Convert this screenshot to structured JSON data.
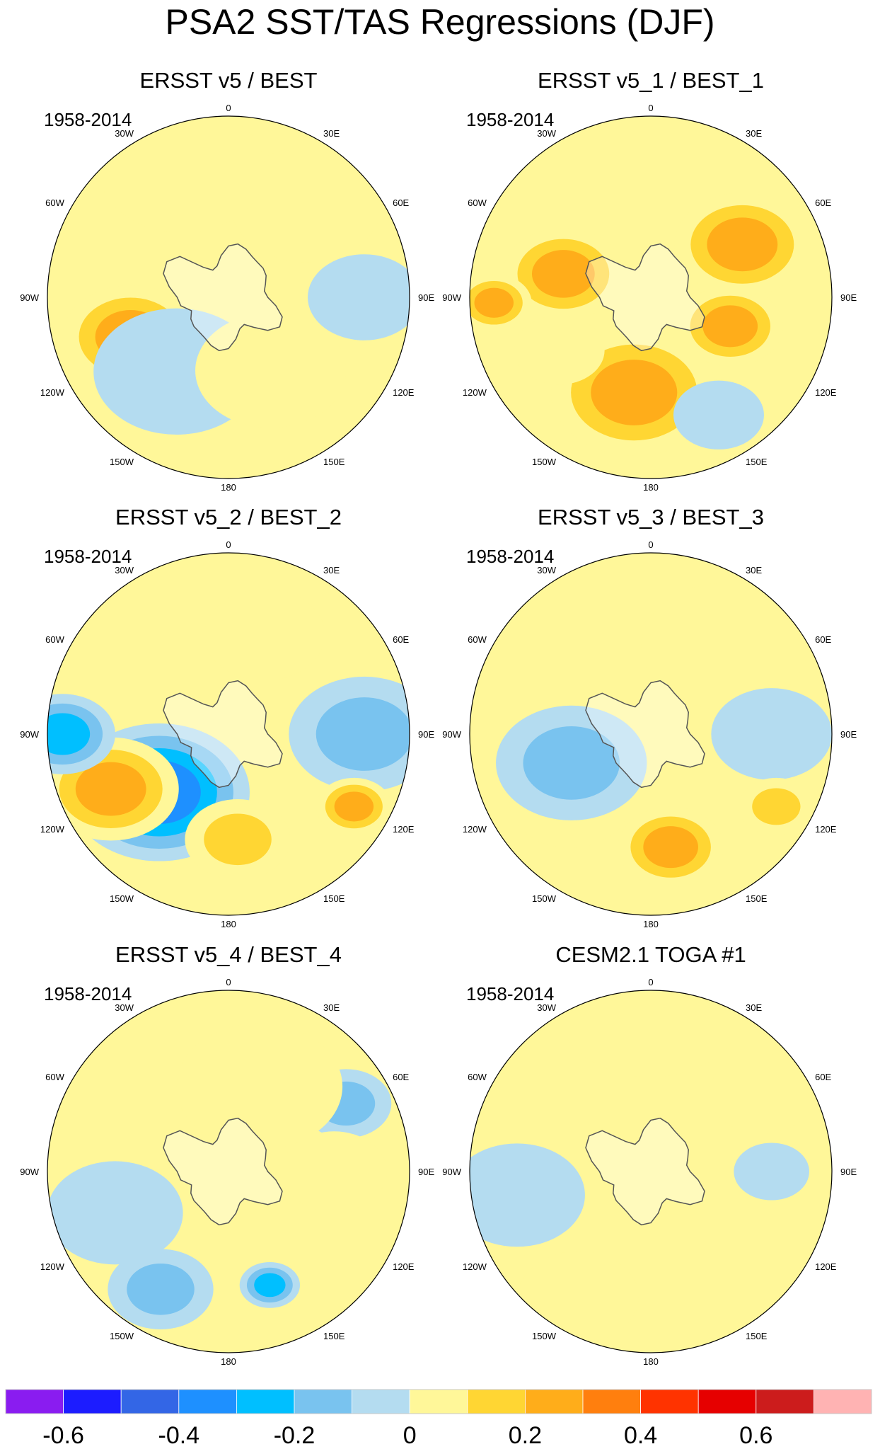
{
  "figure": {
    "title": "PSA2 SST/TAS Regressions (DJF)"
  },
  "chart_data": [
    {
      "type": "heatmap",
      "projection": "south-polar-stereographic",
      "title": "ERSST v5 / BEST",
      "period": "1958-2014",
      "longitude_labels": [
        "0",
        "30E",
        "60E",
        "90E",
        "120E",
        "150E",
        "180",
        "150W",
        "120W",
        "90W",
        "60W",
        "30W"
      ],
      "field_features": [
        {
          "lon": -112,
          "lat": -55,
          "value": 0.25,
          "size": 18
        },
        {
          "lon": -145,
          "lat": -60,
          "value": -0.15,
          "size": 22
        },
        {
          "lon": 40,
          "lat": -50,
          "value": 0.15,
          "size": 20
        },
        {
          "lon": 90,
          "lat": -45,
          "value": -0.1,
          "size": 15
        },
        {
          "lon": -20,
          "lat": -45,
          "value": 0.1,
          "size": 22
        },
        {
          "lon": 150,
          "lat": -62,
          "value": 0.05,
          "size": 20
        }
      ]
    },
    {
      "type": "heatmap",
      "projection": "south-polar-stereographic",
      "title": "ERSST v5_1 / BEST_1",
      "period": "1958-2014",
      "longitude_labels": [
        "0",
        "30E",
        "60E",
        "90E",
        "120E",
        "150E",
        "180",
        "150W",
        "120W",
        "90W",
        "60W",
        "30W"
      ],
      "field_features": [
        {
          "lon": -75,
          "lat": -60,
          "value": 0.3,
          "size": 16
        },
        {
          "lon": 110,
          "lat": -62,
          "value": 0.3,
          "size": 14
        },
        {
          "lon": 60,
          "lat": -55,
          "value": 0.25,
          "size": 18
        },
        {
          "lon": -170,
          "lat": -58,
          "value": 0.25,
          "size": 22
        },
        {
          "lon": -120,
          "lat": -55,
          "value": 0.05,
          "size": 12
        },
        {
          "lon": 150,
          "lat": -45,
          "value": -0.1,
          "size": 12
        },
        {
          "lon": -92,
          "lat": -38,
          "value": 0.35,
          "size": 10
        }
      ]
    },
    {
      "type": "heatmap",
      "projection": "south-polar-stereographic",
      "title": "ERSST v5_2 / BEST_2",
      "period": "1958-2014",
      "longitude_labels": [
        "0",
        "30E",
        "60E",
        "90E",
        "120E",
        "150E",
        "180",
        "150W",
        "120W",
        "90W",
        "60W",
        "30W"
      ],
      "field_features": [
        {
          "lon": -130,
          "lat": -60,
          "value": -0.4,
          "size": 24
        },
        {
          "lon": -115,
          "lat": -47,
          "value": 0.3,
          "size": 18
        },
        {
          "lon": 90,
          "lat": -45,
          "value": -0.2,
          "size": 20
        },
        {
          "lon": 175,
          "lat": -55,
          "value": 0.2,
          "size": 14
        },
        {
          "lon": 20,
          "lat": -55,
          "value": 0.1,
          "size": 16
        },
        {
          "lon": 120,
          "lat": -42,
          "value": 0.25,
          "size": 10
        },
        {
          "lon": -90,
          "lat": -35,
          "value": -0.3,
          "size": 14
        }
      ]
    },
    {
      "type": "heatmap",
      "projection": "south-polar-stereographic",
      "title": "ERSST v5_3 / BEST_3",
      "period": "1958-2014",
      "longitude_labels": [
        "0",
        "30E",
        "60E",
        "90E",
        "120E",
        "150E",
        "180",
        "150W",
        "120W",
        "90W",
        "60W",
        "30W"
      ],
      "field_features": [
        {
          "lon": 170,
          "lat": -52,
          "value": 0.25,
          "size": 14
        },
        {
          "lon": 40,
          "lat": -52,
          "value": 0.15,
          "size": 22
        },
        {
          "lon": -130,
          "lat": -55,
          "value": 0.1,
          "size": 16
        },
        {
          "lon": -110,
          "lat": -62,
          "value": -0.2,
          "size": 20
        },
        {
          "lon": 90,
          "lat": -50,
          "value": -0.15,
          "size": 16
        },
        {
          "lon": 120,
          "lat": -42,
          "value": 0.2,
          "size": 10
        }
      ]
    },
    {
      "type": "heatmap",
      "projection": "south-polar-stereographic",
      "title": "ERSST v5_4 / BEST_4",
      "period": "1958-2014",
      "longitude_labels": [
        "0",
        "30E",
        "60E",
        "90E",
        "120E",
        "150E",
        "180",
        "150W",
        "120W",
        "90W",
        "60W",
        "30W"
      ],
      "field_features": [
        {
          "lon": 60,
          "lat": -45,
          "value": -0.2,
          "size": 12
        },
        {
          "lon": -150,
          "lat": -45,
          "value": -0.2,
          "size": 14
        },
        {
          "lon": 90,
          "lat": -55,
          "value": 0.15,
          "size": 14
        },
        {
          "lon": 20,
          "lat": -60,
          "value": 0.1,
          "size": 22
        },
        {
          "lon": -110,
          "lat": -50,
          "value": -0.15,
          "size": 18
        },
        {
          "lon": 160,
          "lat": -50,
          "value": -0.25,
          "size": 8
        }
      ]
    },
    {
      "type": "heatmap",
      "projection": "south-polar-stereographic",
      "title": "CESM2.1 TOGA #1",
      "period": "1958-2014",
      "longitude_labels": [
        "0",
        "30E",
        "60E",
        "90E",
        "120E",
        "150E",
        "180",
        "150W",
        "120W",
        "90W",
        "60W",
        "30W"
      ],
      "field_features": [
        {
          "lon": 0,
          "lat": -35,
          "value": 0.15,
          "size": 25
        },
        {
          "lon": 55,
          "lat": -45,
          "value": 0.15,
          "size": 14
        },
        {
          "lon": -150,
          "lat": -42,
          "value": 0.15,
          "size": 16
        },
        {
          "lon": -100,
          "lat": -45,
          "value": -0.05,
          "size": 18
        },
        {
          "lon": 90,
          "lat": -50,
          "value": -0.05,
          "size": 10
        }
      ]
    }
  ],
  "colorbar": {
    "colors": [
      "#8a1cf0",
      "#1c1cff",
      "#3366e6",
      "#1e90ff",
      "#00bfff",
      "#79c3ef",
      "#b4dcf0",
      "#fff799",
      "#ffd633",
      "#ffad1a",
      "#ff7f0e",
      "#ff3300",
      "#e60000",
      "#cc1c1c",
      "#ffb3b3"
    ],
    "tick_values": [
      "-0.6",
      "-0.4",
      "-0.2",
      "0",
      "0.2",
      "0.4",
      "0.6"
    ],
    "value_range": [
      -0.7,
      0.8
    ],
    "step": 0.1
  }
}
